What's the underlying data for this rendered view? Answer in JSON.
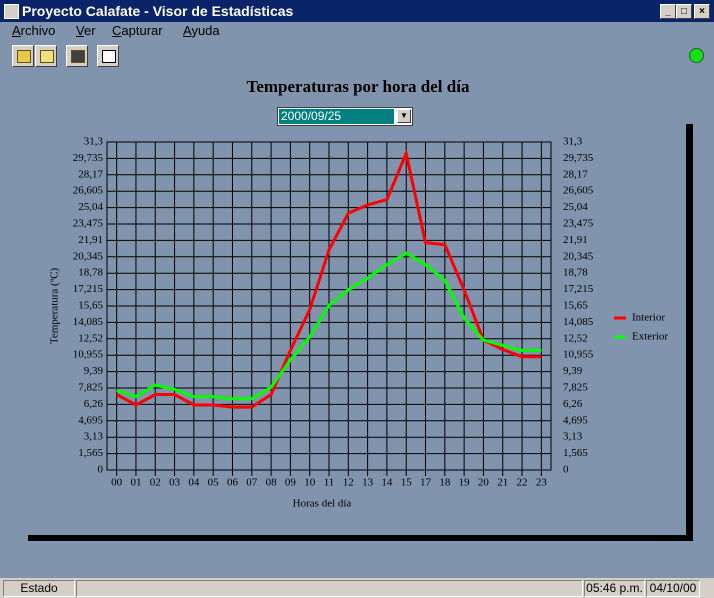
{
  "window": {
    "title": "Proyecto Calafate - Visor de Estadísticas"
  },
  "menu": [
    "Archivo",
    "Ver",
    "Capturar",
    "Ayuda"
  ],
  "date_select": "2000/09/25",
  "chart_data": {
    "type": "line",
    "title": "Temperaturas por hora del día",
    "xlabel": "Horas del día",
    "ylabel": "Temperatura (ºC)",
    "categories": [
      "00",
      "01",
      "02",
      "03",
      "04",
      "05",
      "06",
      "07",
      "08",
      "09",
      "10",
      "11",
      "12",
      "13",
      "14",
      "15",
      "17",
      "18",
      "19",
      "20",
      "21",
      "22",
      "23"
    ],
    "series": [
      {
        "name": "Interior",
        "color": "#ff0000",
        "values": [
          7.2,
          6.2,
          7.2,
          7.2,
          6.2,
          6.2,
          6.0,
          6.0,
          7.2,
          11.4,
          15.3,
          21.0,
          24.5,
          25.3,
          25.8,
          30.2,
          21.7,
          21.5,
          17.2,
          12.4,
          11.5,
          10.8,
          10.8
        ]
      },
      {
        "name": "Exterior",
        "color": "#00ff00",
        "values": [
          7.6,
          7.0,
          8.1,
          7.7,
          7.0,
          7.0,
          6.8,
          6.8,
          7.9,
          10.5,
          12.7,
          15.7,
          17.2,
          18.3,
          19.6,
          20.7,
          19.6,
          18.1,
          14.5,
          12.4,
          11.9,
          11.4,
          11.4
        ]
      }
    ],
    "ylim": [
      0,
      31.3
    ],
    "yticks": [
      0,
      {
        "value": 1.565,
        "label": "1,565"
      },
      {
        "value": 3.13,
        "label": "3,13"
      },
      {
        "value": 4.695,
        "label": "4,695"
      },
      {
        "value": 6.26,
        "label": "6,26"
      },
      {
        "value": 7.825,
        "label": "7,825"
      },
      {
        "value": 9.39,
        "label": "9,39"
      },
      {
        "value": 10.955,
        "label": "10,955"
      },
      {
        "value": 12.52,
        "label": "12,52"
      },
      {
        "value": 14.085,
        "label": "14,085"
      },
      {
        "value": 15.65,
        "label": "15,65"
      },
      {
        "value": 17.215,
        "label": "17,215"
      },
      {
        "value": 18.78,
        "label": "18,78"
      },
      {
        "value": 20.345,
        "label": "20,345"
      },
      {
        "value": 21.91,
        "label": "21,91"
      },
      {
        "value": 23.475,
        "label": "23,475"
      },
      {
        "value": 25.04,
        "label": "25,04"
      },
      {
        "value": 26.605,
        "label": "26,605"
      },
      {
        "value": 28.17,
        "label": "28,17"
      },
      {
        "value": 29.735,
        "label": "29,735"
      },
      {
        "value": 31.3,
        "label": "31,3"
      }
    ],
    "grid": true
  },
  "status": {
    "state": "Estado",
    "time": "05:46 p.m.",
    "date": "04/10/00"
  }
}
